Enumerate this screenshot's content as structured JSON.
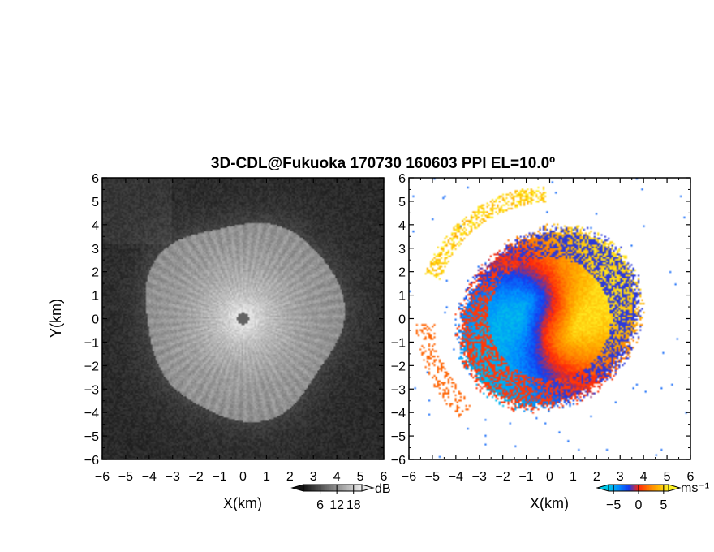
{
  "chart_data": [
    {
      "type": "heatmap",
      "panel": "left",
      "title": "3D-CDL@Fukuoka 170730 160603 PPI EL=10.0º",
      "xlabel": "X(km)",
      "ylabel": "Y(km)",
      "xlim": [
        -6,
        6
      ],
      "ylim": [
        -6,
        6
      ],
      "xticks": [
        "−6",
        "−5",
        "−4",
        "−3",
        "−2",
        "−1",
        "0",
        "1",
        "2",
        "3",
        "4",
        "5",
        "6"
      ],
      "yticks": [
        "−6",
        "−5",
        "−4",
        "−3",
        "−2",
        "−1",
        "0",
        "1",
        "2",
        "3",
        "4",
        "5",
        "6"
      ],
      "quantity": "SNR",
      "echo_radius_km": 4.2,
      "colorbar": {
        "unit": "dB",
        "ticks": [
          "6",
          "12",
          "18"
        ],
        "range": [
          0,
          21
        ],
        "colormap": "grayscale"
      }
    },
    {
      "type": "heatmap",
      "panel": "right",
      "xlabel": "X(km)",
      "xlim": [
        -6,
        6
      ],
      "ylim": [
        -6,
        6
      ],
      "xticks": [
        "−6",
        "−5",
        "−4",
        "−3",
        "−2",
        "−1",
        "0",
        "1",
        "2",
        "3",
        "4",
        "5",
        "6"
      ],
      "yticks": [
        "−6",
        "−5",
        "−4",
        "−3",
        "−2",
        "−1",
        "0",
        "1",
        "2",
        "3",
        "4",
        "5",
        "6"
      ],
      "quantity": "Doppler velocity",
      "echo_radius_km": 3.8,
      "colorbar": {
        "unit": "ms⁻¹",
        "ticks": [
          "−5",
          "0",
          "5"
        ],
        "range": [
          -6,
          6
        ],
        "colormap": "blue-red-yellow"
      }
    }
  ]
}
